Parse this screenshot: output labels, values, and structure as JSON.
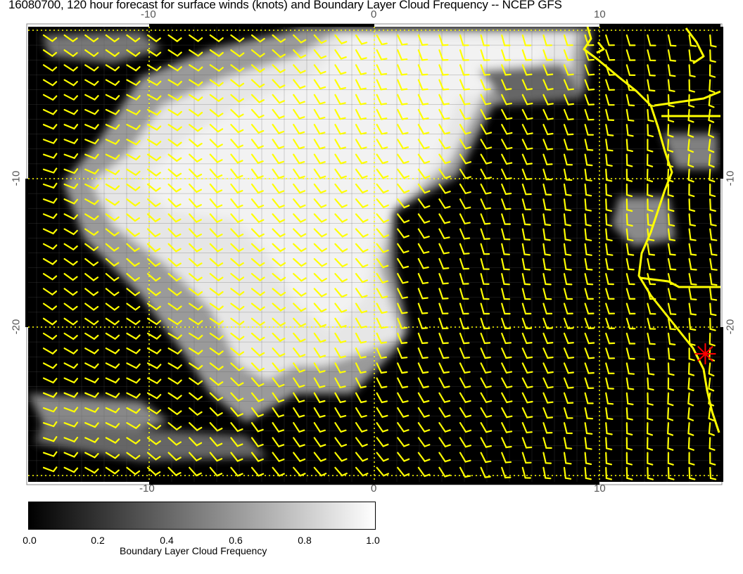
{
  "title": "16080700, 120 hour forecast for surface winds (knots) and Boundary Layer Cloud Frequency -- NCEP GFS",
  "chart_data": {
    "type": "heatmap",
    "title": "16080700, 120 hour forecast for surface winds (knots) and Boundary Layer Cloud Frequency -- NCEP GFS",
    "x_ticks": [
      "-10",
      "0",
      "10"
    ],
    "y_ticks": [
      "-10",
      "-20"
    ],
    "xlim": [
      -15.4,
      15.4
    ],
    "ylim": [
      -30.4,
      0.2
    ],
    "grid": true,
    "field": "Boundary Layer Cloud Frequency",
    "overlay": "surface wind barbs (knots), predominantly south-easterly trades, turning southerly near the coast",
    "marker": {
      "type": "star",
      "color": "#ff0000",
      "lon": 14.7,
      "lat": -21.8
    },
    "colorbar": {
      "label": "Boundary Layer Cloud Frequency",
      "ticks": [
        "0.0",
        "0.2",
        "0.4",
        "0.6",
        "0.8",
        "1.0"
      ],
      "range": [
        0.0,
        1.0
      ],
      "colors": [
        "#000000",
        "#ffffff"
      ]
    },
    "colors": {
      "wind_barbs": "#ffff00",
      "coastline": "#ffff00",
      "background": "#000000",
      "cloud": "#f0f0f0"
    }
  }
}
